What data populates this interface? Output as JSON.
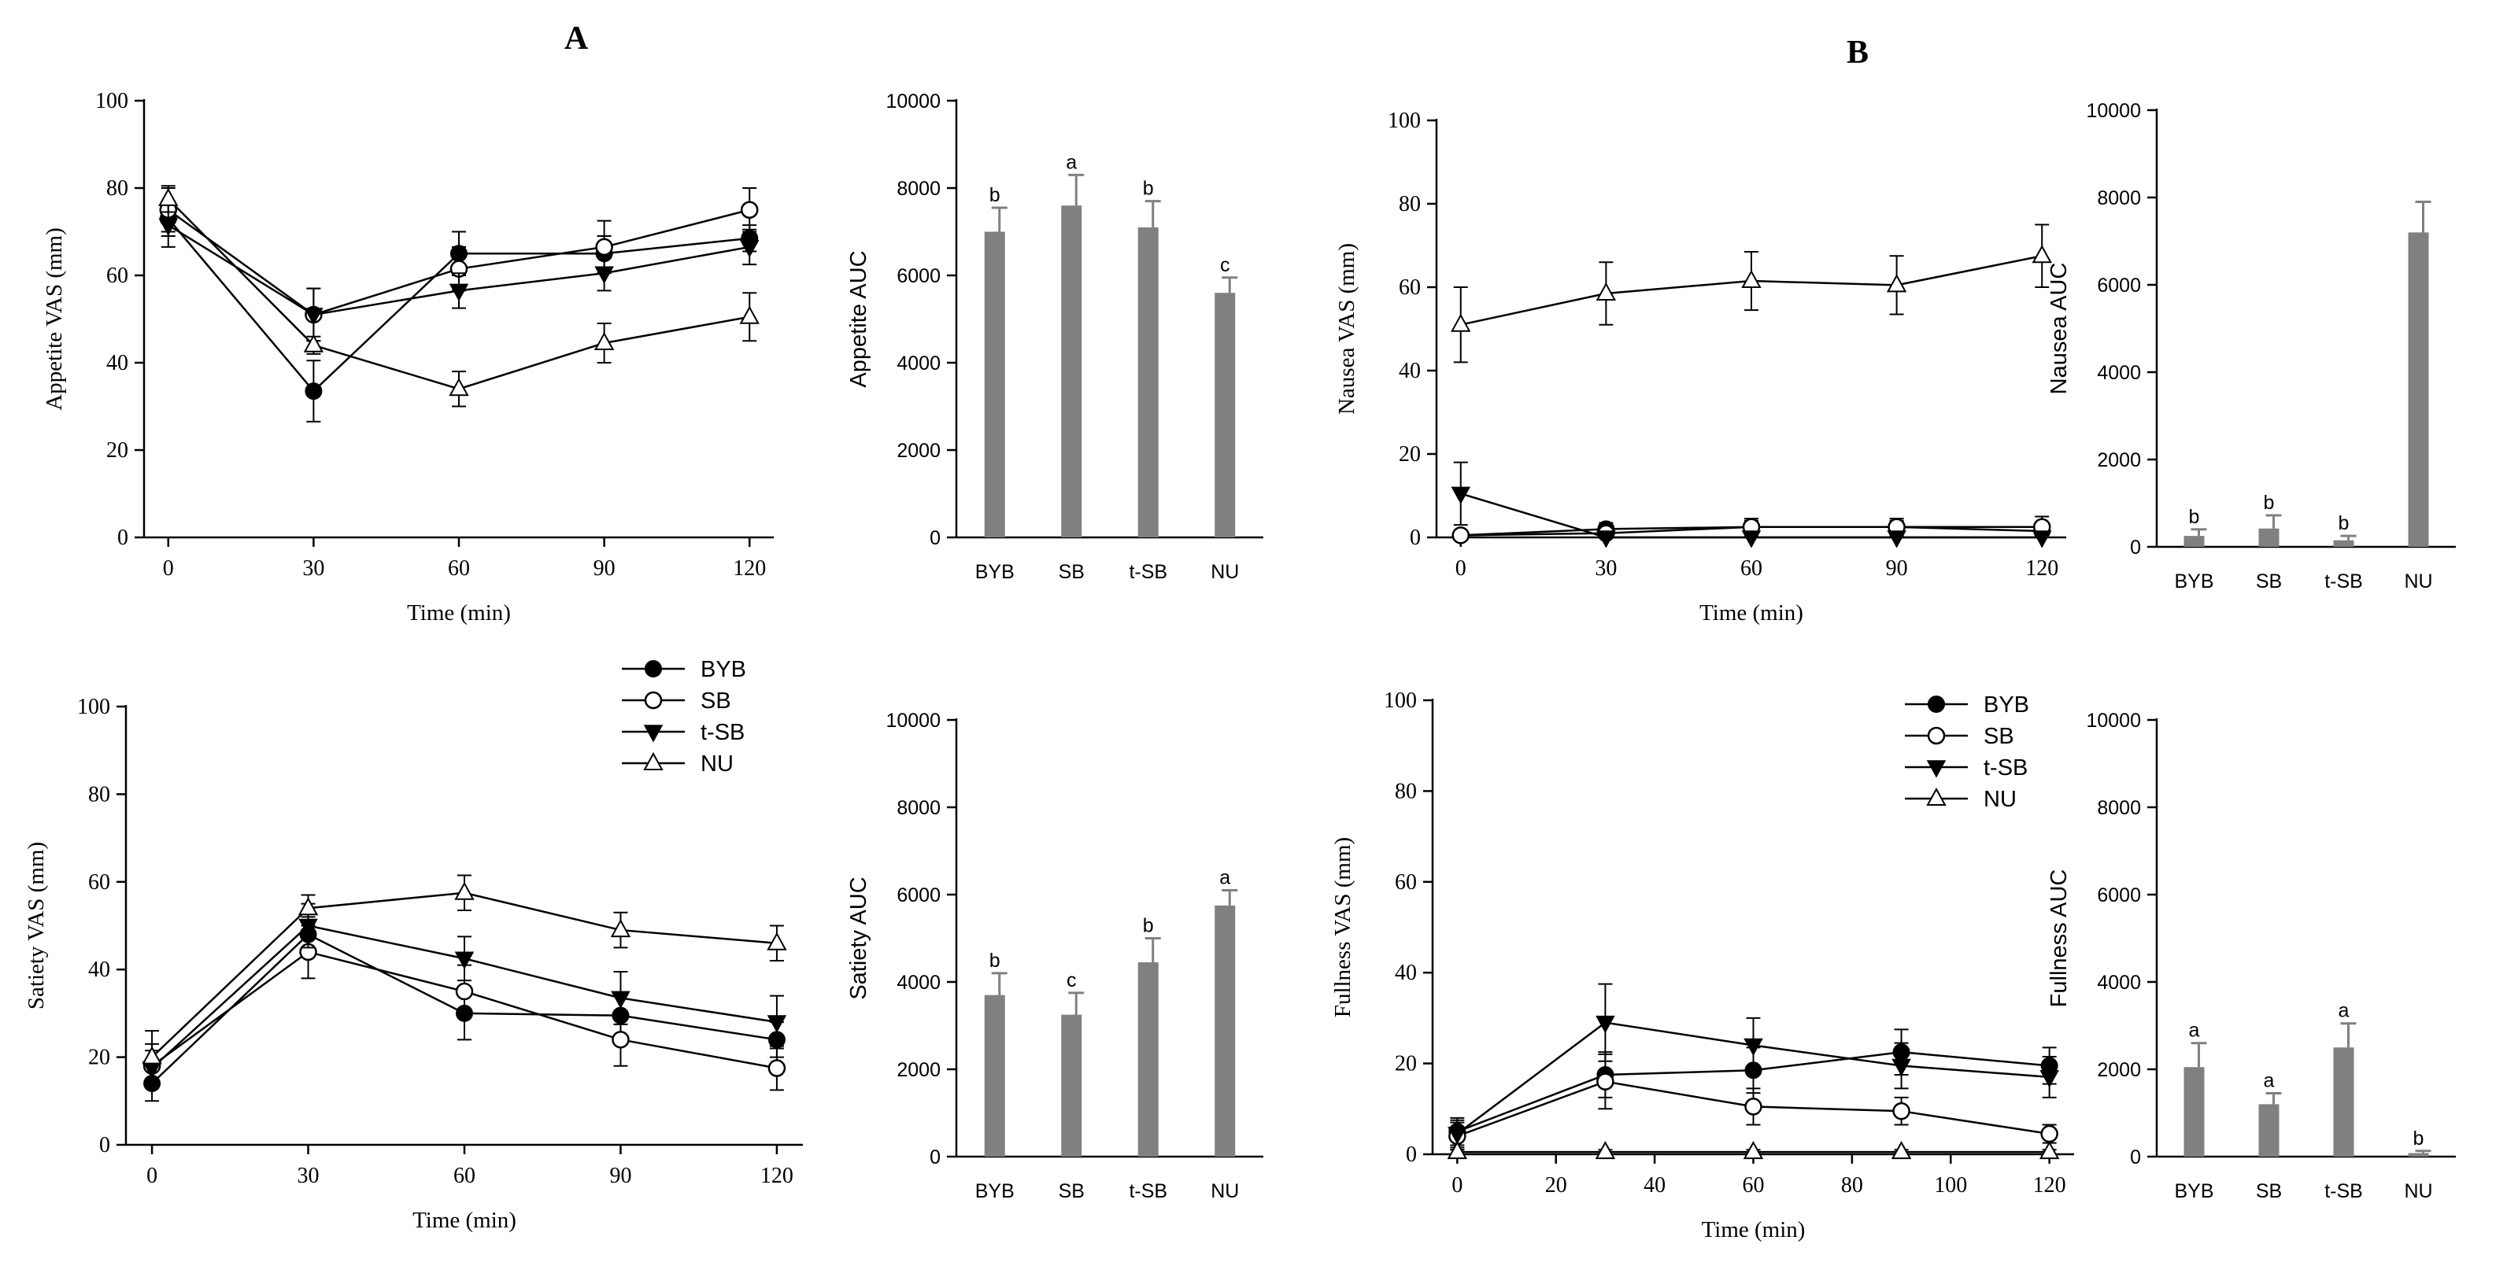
{
  "figure": {
    "panel_labels": [
      "A",
      "B"
    ],
    "colors": {
      "axis": "#000000",
      "bar": "#808080",
      "line": "#000000",
      "open": "#ffffff"
    }
  },
  "chart_data": [
    {
      "id": "appetite-line",
      "type": "line",
      "title": "",
      "xlabel": "Time (min)",
      "ylabel": "Appetite VAS (mm)",
      "x": [
        0,
        30,
        60,
        90,
        120
      ],
      "xticks": [
        0,
        30,
        60,
        90,
        120
      ],
      "xtick_labels": [
        "0",
        "30",
        "60",
        "90",
        "120"
      ],
      "xlim": [
        -5,
        125
      ],
      "ylim": [
        0,
        100
      ],
      "yticks": [
        0,
        20,
        40,
        60,
        80,
        100
      ],
      "ytick_labels": [
        "0",
        "20",
        "40",
        "60",
        "80",
        "100"
      ],
      "series": [
        {
          "name": "BYB",
          "marker": "circle-filled",
          "values": [
            73,
            33.5,
            65,
            65,
            68.5
          ],
          "errors": [
            4,
            7,
            5,
            4,
            3
          ]
        },
        {
          "name": "SB",
          "marker": "circle-open",
          "values": [
            75,
            51,
            61.5,
            66.5,
            75
          ],
          "errors": [
            5,
            6,
            5,
            6,
            5
          ]
        },
        {
          "name": "t-SB",
          "marker": "triangle-down-filled",
          "values": [
            71.5,
            51,
            56.5,
            60.5,
            66.5
          ],
          "errors": [
            5,
            6,
            4,
            4,
            4
          ]
        },
        {
          "name": "NU",
          "marker": "triangle-up-open",
          "values": [
            77.5,
            44,
            34,
            44.5,
            50.5
          ],
          "errors": [
            3,
            2,
            4,
            4.5,
            5.5
          ]
        }
      ]
    },
    {
      "id": "appetite-bar",
      "type": "bar",
      "title": "",
      "xlabel": "",
      "ylabel": "Appetite AUC",
      "categories": [
        "BYB",
        "SB",
        "t-SB",
        "NU"
      ],
      "values": [
        7000,
        7600,
        7100,
        5600
      ],
      "errors": [
        550,
        700,
        600,
        350
      ],
      "letters": [
        "b",
        "a",
        "b",
        "c"
      ],
      "ylim": [
        0,
        10000
      ],
      "yticks": [
        0,
        2000,
        4000,
        6000,
        8000,
        10000
      ],
      "ytick_labels": [
        "0",
        "2000",
        "4000",
        "6000",
        "8000",
        "10000"
      ]
    },
    {
      "id": "nausea-line",
      "type": "line",
      "title": "",
      "xlabel": "Time (min)",
      "ylabel": "Nausea VAS (mm)",
      "x": [
        0,
        30,
        60,
        90,
        120
      ],
      "xticks": [
        0,
        30,
        60,
        90,
        120
      ],
      "xtick_labels": [
        "0",
        "30",
        "60",
        "90",
        "120"
      ],
      "xlim": [
        -5,
        125
      ],
      "ylim": [
        0,
        100
      ],
      "yticks": [
        0,
        20,
        40,
        60,
        80,
        100
      ],
      "ytick_labels": [
        "0",
        "20",
        "40",
        "60",
        "80",
        "100"
      ],
      "series": [
        {
          "name": "BYB",
          "marker": "circle-filled",
          "values": [
            0.5,
            2,
            2.5,
            2.5,
            1.5
          ],
          "errors": [
            1,
            1.5,
            1.5,
            1.5,
            1
          ]
        },
        {
          "name": "SB",
          "marker": "circle-open",
          "values": [
            0.5,
            1,
            2.5,
            2.5,
            2.5
          ],
          "errors": [
            1,
            2,
            2,
            2,
            2.5
          ]
        },
        {
          "name": "t-SB",
          "marker": "triangle-down-filled",
          "values": [
            10.5,
            0,
            0,
            0,
            0
          ],
          "errors": [
            7.5,
            0.5,
            0.5,
            0.5,
            0.5
          ]
        },
        {
          "name": "NU",
          "marker": "triangle-up-open",
          "values": [
            51,
            58.5,
            61.5,
            60.5,
            67.5
          ],
          "errors": [
            9,
            7.5,
            7,
            7,
            7.5
          ]
        }
      ]
    },
    {
      "id": "nausea-bar",
      "type": "bar",
      "title": "",
      "xlabel": "",
      "ylabel": "Nausea AUC",
      "categories": [
        "BYB",
        "SB",
        "t-SB",
        "NU"
      ],
      "values": [
        250,
        420,
        150,
        7200
      ],
      "errors": [
        150,
        300,
        100,
        700
      ],
      "letters": [
        "b",
        "b",
        "b",
        ""
      ],
      "ylim": [
        0,
        10000
      ],
      "yticks": [
        0,
        2000,
        4000,
        6000,
        8000,
        10000
      ],
      "ytick_labels": [
        "0",
        "2000",
        "4000",
        "6000",
        "8000",
        "10000"
      ]
    },
    {
      "id": "satiety-line",
      "type": "line",
      "title": "",
      "xlabel": "Time (min)",
      "ylabel": "Satiety VAS (mm)",
      "x": [
        0,
        30,
        60,
        90,
        120
      ],
      "xticks": [
        0,
        30,
        60,
        90,
        120
      ],
      "xtick_labels": [
        "0",
        "30",
        "60",
        "90",
        "120"
      ],
      "xlim": [
        -5,
        125
      ],
      "ylim": [
        0,
        100
      ],
      "yticks": [
        0,
        20,
        40,
        60,
        80,
        100
      ],
      "ytick_labels": [
        "0",
        "20",
        "40",
        "60",
        "80",
        "100"
      ],
      "series": [
        {
          "name": "BYB",
          "marker": "circle-filled",
          "values": [
            14,
            48,
            30,
            29.5,
            24
          ],
          "errors": [
            4,
            4,
            6,
            5,
            4
          ]
        },
        {
          "name": "SB",
          "marker": "circle-open",
          "values": [
            18,
            44,
            35,
            24,
            17.5
          ],
          "errors": [
            5,
            6,
            6,
            6,
            5
          ]
        },
        {
          "name": "t-SB",
          "marker": "triangle-down-filled",
          "values": [
            17.5,
            50,
            42.5,
            33.5,
            28
          ],
          "errors": [
            4,
            5,
            5,
            6,
            6
          ]
        },
        {
          "name": "NU",
          "marker": "triangle-up-open",
          "values": [
            20,
            54,
            57.5,
            49,
            46
          ],
          "errors": [
            6,
            3,
            4,
            4,
            4
          ]
        }
      ]
    },
    {
      "id": "satiety-bar",
      "type": "bar",
      "title": "",
      "xlabel": "",
      "ylabel": "Satiety AUC",
      "categories": [
        "BYB",
        "SB",
        "t-SB",
        "NU"
      ],
      "values": [
        3700,
        3250,
        4450,
        5750
      ],
      "errors": [
        500,
        500,
        550,
        350
      ],
      "letters": [
        "b",
        "c",
        "b",
        "a"
      ],
      "ylim": [
        0,
        10000
      ],
      "yticks": [
        0,
        2000,
        4000,
        6000,
        8000,
        10000
      ],
      "ytick_labels": [
        "0",
        "2000",
        "4000",
        "6000",
        "8000",
        "10000"
      ]
    },
    {
      "id": "fullness-line",
      "type": "line",
      "title": "",
      "xlabel": "Time (min)",
      "ylabel": "Fullness VAS (mm)",
      "x": [
        0,
        30,
        60,
        90,
        120
      ],
      "xticks": [
        0,
        20,
        40,
        60,
        80,
        100,
        120
      ],
      "xtick_labels": [
        "0",
        "20",
        "40",
        "60",
        "80",
        "100",
        "120"
      ],
      "xlim": [
        -5,
        125
      ],
      "ylim": [
        0,
        100
      ],
      "yticks": [
        0,
        20,
        40,
        60,
        80,
        100
      ],
      "ytick_labels": [
        "0",
        "20",
        "40",
        "60",
        "80",
        "100"
      ],
      "series": [
        {
          "name": "BYB",
          "marker": "circle-filled",
          "values": [
            5,
            17.5,
            18.5,
            22.5,
            19.5
          ],
          "errors": [
            3,
            5,
            5,
            5,
            4
          ]
        },
        {
          "name": "SB",
          "marker": "circle-open",
          "values": [
            4,
            16,
            10.5,
            9.5,
            4.5
          ],
          "errors": [
            3,
            6,
            4,
            3,
            2
          ]
        },
        {
          "name": "t-SB",
          "marker": "triangle-down-filled",
          "values": [
            4.5,
            29,
            24,
            19.5,
            17
          ],
          "errors": [
            3,
            8.5,
            6,
            5,
            4.5
          ]
        },
        {
          "name": "NU",
          "marker": "triangle-up-open",
          "values": [
            0.5,
            0.5,
            0.5,
            0.5,
            0.5
          ],
          "errors": [
            0.5,
            0.5,
            0.5,
            0.5,
            0.5
          ]
        }
      ]
    },
    {
      "id": "fullness-bar",
      "type": "bar",
      "title": "",
      "xlabel": "",
      "ylabel": "Fullness AUC",
      "categories": [
        "BYB",
        "SB",
        "t-SB",
        "NU"
      ],
      "values": [
        2050,
        1200,
        2500,
        80
      ],
      "errors": [
        550,
        250,
        550,
        50
      ],
      "letters": [
        "a",
        "a",
        "a",
        "b"
      ],
      "ylim": [
        0,
        10000
      ],
      "yticks": [
        0,
        2000,
        4000,
        6000,
        8000,
        10000
      ],
      "ytick_labels": [
        "0",
        "2000",
        "4000",
        "6000",
        "8000",
        "10000"
      ]
    }
  ]
}
